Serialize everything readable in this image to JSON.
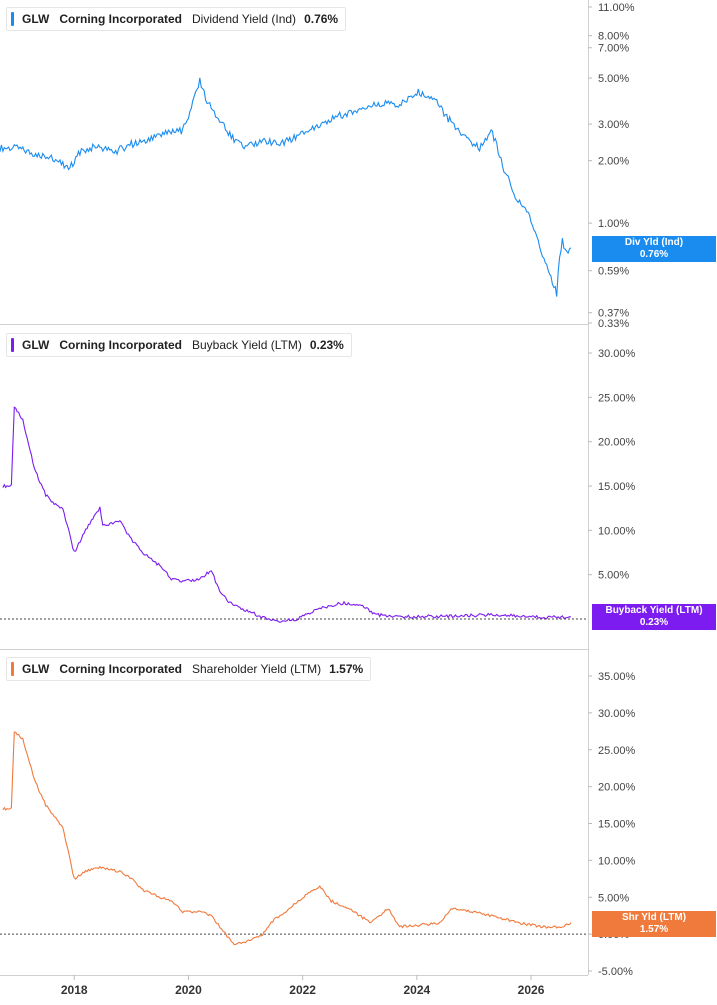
{
  "x_axis": {
    "ticks": [
      "2018",
      "2020",
      "2022",
      "2024",
      "2026"
    ]
  },
  "panels": [
    {
      "ticker": "GLW",
      "company": "Corning Incorporated",
      "metric": "Dividend Yield (Ind)",
      "value": "0.76%",
      "color": "#1a8cf0",
      "tag_label": "Div Yld (Ind)",
      "tag_value": "0.76%",
      "scale": "log",
      "ticks": [
        "11.00%",
        "8.00%",
        "7.00%",
        "5.00%",
        "3.00%",
        "2.00%",
        "1.00%",
        "0.59%",
        "0.37%",
        "0.33%"
      ],
      "hidden_tick": "0.8"
    },
    {
      "ticker": "GLW",
      "company": "Corning Incorporated",
      "metric": "Buyback Yield (LTM)",
      "value": "0.23%",
      "color": "#7c1cf0",
      "tag_label": "Buyback Yield (LTM)",
      "tag_value": "0.23%",
      "scale": "linear",
      "ticks": [
        "30.00%",
        "25.00%",
        "20.00%",
        "15.00%",
        "10.00%",
        "5.00%"
      ]
    },
    {
      "ticker": "GLW",
      "company": "Corning Incorporated",
      "metric": "Shareholder Yield (LTM)",
      "value": "1.57%",
      "color": "#f07a3c",
      "tag_label": "Shr Yld (LTM)",
      "tag_value": "1.57%",
      "scale": "linear",
      "ticks": [
        "35.00%",
        "30.00%",
        "25.00%",
        "20.00%",
        "15.00%",
        "10.00%",
        "5.00%",
        "0.00%",
        "-5.00%"
      ]
    }
  ],
  "chart_data": [
    {
      "type": "line",
      "title": "GLW Corning Incorporated Dividend Yield (Ind) 0.76%",
      "y_scale": "log",
      "ylim": [
        0.33,
        11.0
      ],
      "series": [
        {
          "name": "Dividend Yield (Ind)",
          "x": [
            2016.7,
            2017.0,
            2017.3,
            2017.6,
            2017.9,
            2018.1,
            2018.4,
            2018.7,
            2019.0,
            2019.3,
            2019.6,
            2019.9,
            2020.05,
            2020.2,
            2020.3,
            2020.5,
            2020.8,
            2021.0,
            2021.3,
            2021.6,
            2021.9,
            2022.2,
            2022.5,
            2022.8,
            2023.1,
            2023.4,
            2023.7,
            2024.0,
            2024.3,
            2024.5,
            2024.8,
            2025.1,
            2025.3,
            2025.5,
            2025.7,
            2025.9,
            2026.1,
            2026.2,
            2026.35,
            2026.45,
            2026.5,
            2026.55,
            2026.6,
            2026.7
          ],
          "values": [
            2.3,
            2.3,
            2.15,
            2.1,
            1.8,
            2.2,
            2.35,
            2.2,
            2.4,
            2.5,
            2.7,
            2.8,
            3.5,
            4.9,
            4.0,
            3.2,
            2.5,
            2.3,
            2.5,
            2.4,
            2.6,
            2.9,
            3.2,
            3.4,
            3.6,
            3.8,
            3.7,
            4.3,
            4.0,
            3.3,
            2.6,
            2.3,
            2.8,
            1.9,
            1.35,
            1.2,
            0.85,
            0.68,
            0.55,
            0.45,
            0.68,
            0.82,
            0.72,
            0.76
          ]
        }
      ]
    },
    {
      "type": "line",
      "title": "GLW Corning Incorporated Buyback Yield (LTM) 0.23%",
      "ylim": [
        0,
        30
      ],
      "series": [
        {
          "name": "Buyback Yield (LTM)",
          "x": [
            2016.75,
            2016.9,
            2016.95,
            2017.1,
            2017.3,
            2017.5,
            2017.65,
            2017.8,
            2018.0,
            2018.2,
            2018.45,
            2018.5,
            2018.8,
            2019.0,
            2019.2,
            2019.5,
            2019.7,
            2019.9,
            2020.2,
            2020.4,
            2020.55,
            2020.7,
            2021.0,
            2021.3,
            2021.6,
            2021.9,
            2022.3,
            2022.7,
            2023.0,
            2023.3,
            2023.6,
            2024.0,
            2024.5,
            2025.0,
            2025.3,
            2025.8,
            2026.3,
            2026.7
          ],
          "values": [
            15.0,
            15.0,
            24.0,
            22.5,
            17.0,
            14.0,
            13.0,
            12.5,
            7.5,
            10.0,
            12.5,
            10.5,
            11.0,
            9.0,
            7.5,
            6.0,
            4.5,
            4.2,
            4.5,
            5.5,
            3.0,
            2.0,
            1.0,
            0.2,
            -0.3,
            0.0,
            1.2,
            1.8,
            1.6,
            0.5,
            0.2,
            0.3,
            0.3,
            0.4,
            0.5,
            0.3,
            0.2,
            0.23
          ]
        }
      ]
    },
    {
      "type": "line",
      "title": "GLW Corning Incorporated Shareholder Yield (LTM) 1.57%",
      "ylim": [
        -5,
        35
      ],
      "series": [
        {
          "name": "Shareholder Yield (LTM)",
          "x": [
            2016.75,
            2016.9,
            2016.95,
            2017.1,
            2017.3,
            2017.5,
            2017.65,
            2017.8,
            2018.0,
            2018.2,
            2018.45,
            2018.8,
            2019.0,
            2019.2,
            2019.5,
            2019.7,
            2019.9,
            2020.2,
            2020.4,
            2020.6,
            2020.8,
            2021.0,
            2021.3,
            2021.5,
            2021.7,
            2022.0,
            2022.3,
            2022.5,
            2022.8,
            2023.0,
            2023.2,
            2023.5,
            2023.7,
            2024.0,
            2024.4,
            2024.6,
            2025.0,
            2025.3,
            2025.8,
            2026.2,
            2026.5,
            2026.7
          ],
          "values": [
            17.0,
            17.0,
            27.5,
            26.5,
            21.0,
            17.5,
            16.0,
            14.5,
            7.5,
            8.5,
            9.0,
            8.5,
            7.5,
            6.0,
            5.0,
            4.5,
            3.0,
            3.0,
            2.5,
            0.5,
            -1.5,
            -1.0,
            0.0,
            2.0,
            3.0,
            5.0,
            6.5,
            4.5,
            3.5,
            2.5,
            1.5,
            3.5,
            1.0,
            1.2,
            1.5,
            3.5,
            3.0,
            2.5,
            1.5,
            1.0,
            0.9,
            1.57
          ]
        }
      ]
    }
  ]
}
